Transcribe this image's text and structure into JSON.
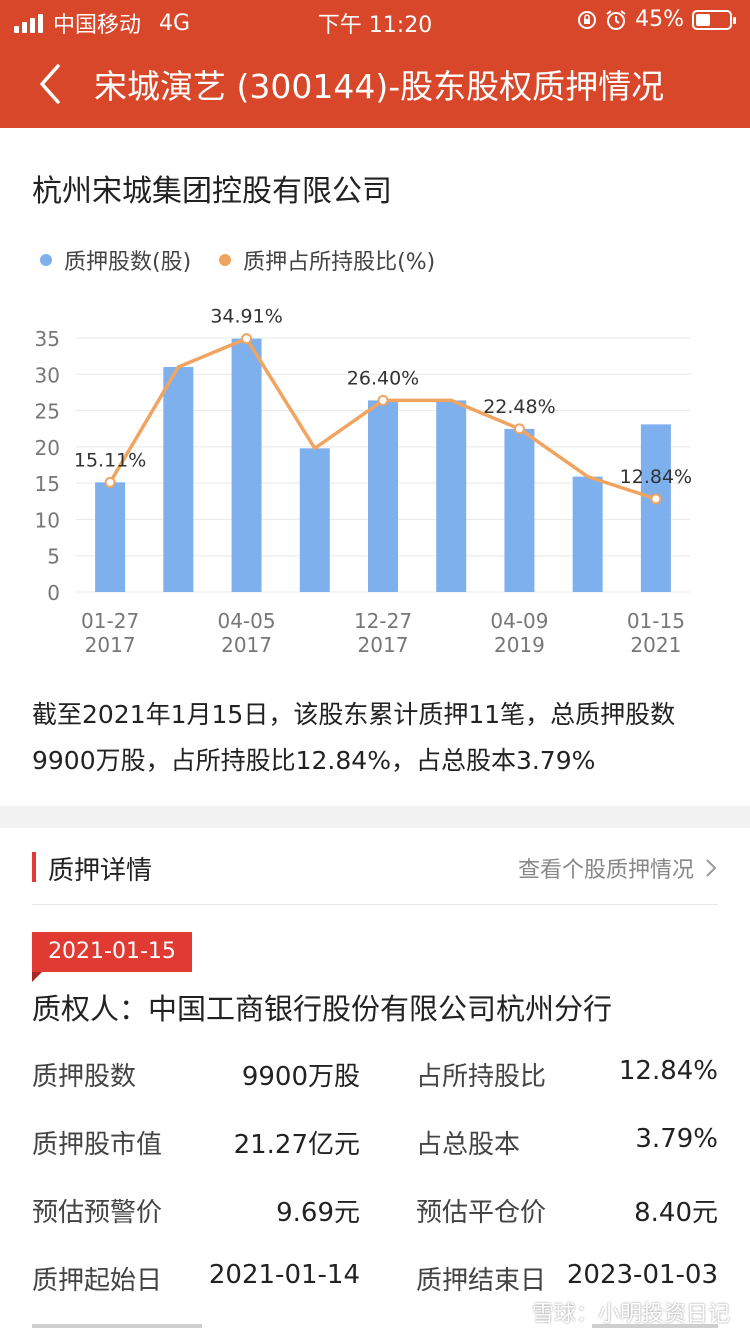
{
  "status_bar": {
    "carrier": "中国移动",
    "network": "4G",
    "time": "下午 11:20",
    "battery": "45%",
    "battery_level": 0.45
  },
  "nav": {
    "title": "宋城演艺 (300144)-股东股权质押情况"
  },
  "company": "杭州宋城集团控股有限公司",
  "legend": {
    "bar": "质押股数(股)",
    "line": "质押占所持股比(%)"
  },
  "colors": {
    "brand": "#d9472b",
    "bar": "#7fb0ee",
    "line": "#f0a460",
    "accent": "#e03a33"
  },
  "chart_data": {
    "type": "bar",
    "x_ticks": [
      {
        "date": "01-27",
        "year": "2017"
      },
      {
        "date": "04-05",
        "year": "2017"
      },
      {
        "date": "12-27",
        "year": "2017"
      },
      {
        "date": "04-09",
        "year": "2019"
      },
      {
        "date": "01-15",
        "year": "2021"
      }
    ],
    "ylim": [
      0,
      35
    ],
    "yticks": [
      0,
      5,
      10,
      15,
      20,
      25,
      30,
      35
    ],
    "grid": true,
    "legend_position": "top-left",
    "series": [
      {
        "name": "质押股数(股)",
        "type": "bar",
        "values": [
          15.11,
          31.0,
          34.91,
          19.8,
          26.4,
          26.4,
          22.48,
          15.9,
          23.1
        ]
      },
      {
        "name": "质押占所持股比(%)",
        "type": "line",
        "values": [
          15.11,
          31.0,
          34.91,
          19.8,
          26.4,
          26.4,
          22.48,
          15.9,
          12.84
        ]
      }
    ],
    "data_labels": [
      {
        "index": 0,
        "text": "15.11%"
      },
      {
        "index": 2,
        "text": "34.91%"
      },
      {
        "index": 4,
        "text": "26.40%"
      },
      {
        "index": 6,
        "text": "22.48%"
      },
      {
        "index": 8,
        "text": "12.84%"
      }
    ]
  },
  "summary": {
    "line1": "截至2021年1月15日，该股东累计质押11笔，总质押股数",
    "line2": "9900万股，占所持股比12.84%，占总股本3.79%"
  },
  "details": {
    "section_title": "质押详情",
    "view_link": "查看个股质押情况",
    "date_tag": "2021-01-15",
    "pledgee": "质权人：中国工商银行股份有限公司杭州分行",
    "rows": [
      {
        "label1": "质押股数",
        "value1": "9900万股",
        "label2": "占所持股比",
        "value2": "12.84%"
      },
      {
        "label1": "质押股市值",
        "value1": "21.27亿元",
        "label2": "占总股本",
        "value2": "3.79%"
      },
      {
        "label1": "预估预警价",
        "value1": "9.69元",
        "label2": "预估平仓价",
        "value2": "8.40元"
      },
      {
        "label1": "质押起始日",
        "value1": "2021-01-14",
        "label2": "质押结束日",
        "value2": "2023-01-03"
      }
    ]
  },
  "watermark": "雪球：小明投资日记"
}
